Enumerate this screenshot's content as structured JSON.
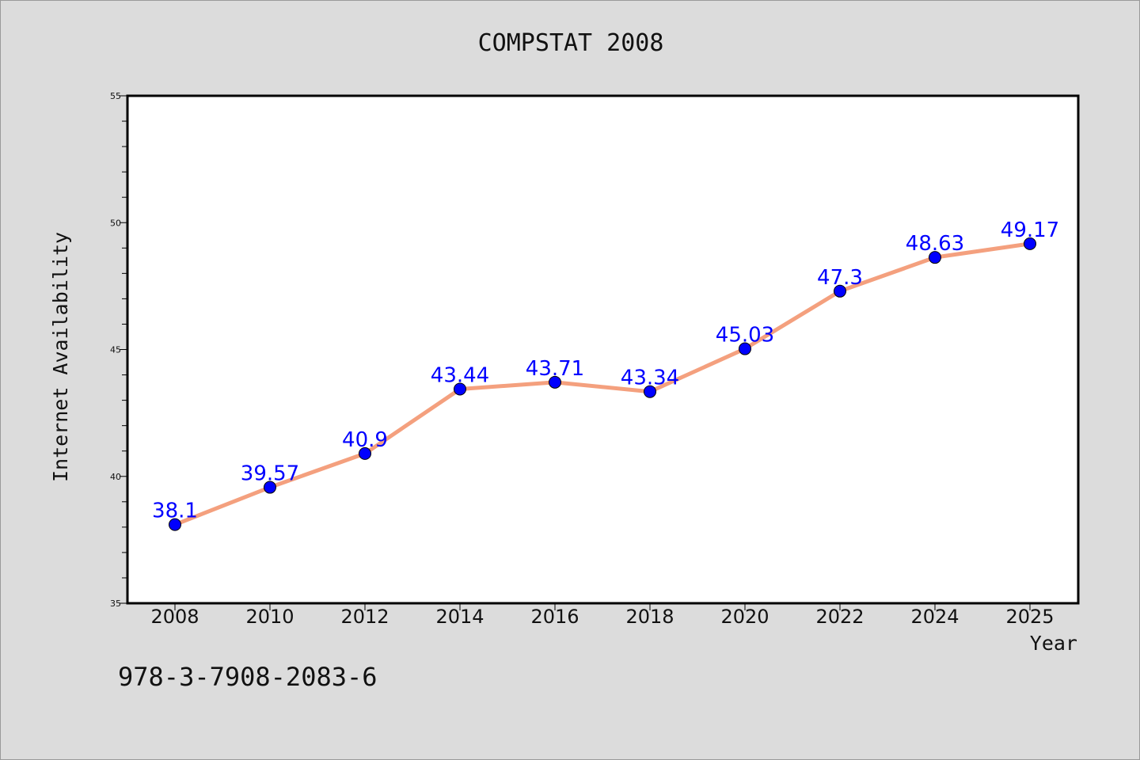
{
  "chart_data": {
    "type": "line",
    "title": "COMPSTAT 2008",
    "xlabel": "Year",
    "ylabel": "Internet Availability",
    "categories": [
      "2008",
      "2010",
      "2012",
      "2014",
      "2016",
      "2018",
      "2020",
      "2022",
      "2024",
      "2025"
    ],
    "series": [
      {
        "values": [
          38.1,
          39.57,
          40.9,
          43.44,
          43.71,
          43.34,
          45.03,
          47.3,
          48.63,
          49.17
        ],
        "labels": [
          "38.1",
          "39.57",
          "40.9",
          "43.44",
          "43.71",
          "43.34",
          "45.03",
          "47.3",
          "48.63",
          "49.17"
        ],
        "line_color": "#f4a07e",
        "marker_color": "#0000ff"
      }
    ],
    "ylim": [
      35,
      55
    ],
    "yticks": [
      "35",
      "40",
      "45",
      "50",
      "55"
    ],
    "grid": false,
    "legend": "none",
    "data_label_color": "#0000ff"
  },
  "footer": {
    "isbn": "978-3-7908-2083-6"
  }
}
